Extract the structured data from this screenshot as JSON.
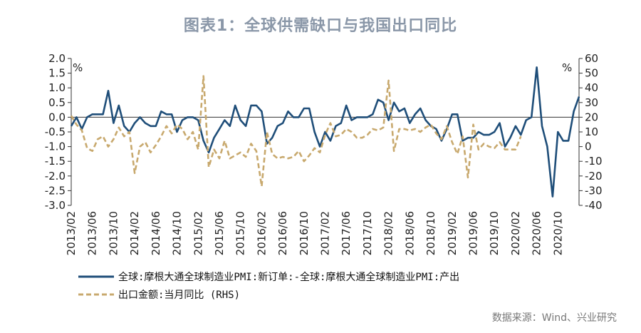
{
  "chart_data": {
    "type": "line",
    "title": "图表1：全球供需缺口与我国出口同比",
    "left_unit": "%",
    "right_unit": "%",
    "ylim_left": [
      -3.0,
      2.0
    ],
    "ylim_right": [
      -40,
      60
    ],
    "yticks_left": [
      "2.0",
      "1.5",
      "1.0",
      "0.5",
      "0.0",
      "-0.5",
      "-1.0",
      "-1.5",
      "-2.0",
      "-2.5",
      "-3.0"
    ],
    "yticks_right": [
      "60",
      "50",
      "40",
      "30",
      "20",
      "10",
      "0",
      "-10",
      "-20",
      "-30",
      "-40"
    ],
    "x_start": "2013/02",
    "x_end": "2020/12",
    "x_tick_labels": [
      "2013/02",
      "2013/06",
      "2013/10",
      "2014/02",
      "2014/06",
      "2014/10",
      "2015/02",
      "2015/06",
      "2015/10",
      "2016/02",
      "2016/06",
      "2016/10",
      "2017/02",
      "2017/06",
      "2017/10",
      "2018/02",
      "2018/06",
      "2018/10",
      "2019/02",
      "2019/06",
      "2019/10",
      "2020/02",
      "2020/06",
      "2020/10"
    ],
    "series": [
      {
        "name": "全球:摩根大通全球制造业PMI:新订单:-全球:摩根大通全球制造业PMI:产出",
        "axis": "left",
        "color": "#1f4e79",
        "style": "solid",
        "values": [
          -0.3,
          0.0,
          -0.4,
          0.0,
          0.1,
          0.1,
          0.1,
          0.9,
          -0.2,
          0.4,
          -0.3,
          -0.5,
          -0.2,
          0.0,
          -0.2,
          -0.3,
          -0.3,
          0.2,
          0.1,
          0.1,
          -0.5,
          -0.1,
          0.0,
          0.0,
          -0.1,
          -0.8,
          -1.2,
          -0.7,
          -0.4,
          -0.1,
          -0.3,
          0.4,
          -0.1,
          -0.3,
          0.4,
          0.4,
          0.2,
          -0.9,
          -0.7,
          -0.3,
          -0.2,
          0.2,
          0.0,
          0.0,
          0.3,
          0.3,
          -0.5,
          -1.0,
          -0.5,
          -0.8,
          -0.3,
          -0.2,
          0.4,
          -0.1,
          0.0,
          0.0,
          0.0,
          0.1,
          0.6,
          0.5,
          -0.1,
          0.5,
          0.2,
          0.3,
          -0.2,
          0.1,
          0.3,
          -0.1,
          -0.3,
          -0.4,
          -0.8,
          -0.4,
          0.1,
          0.1,
          -0.8,
          -0.7,
          -0.7,
          -0.5,
          -0.6,
          -0.6,
          -0.5,
          -0.2,
          -1.0,
          -0.7,
          -0.3,
          -0.6,
          -0.1,
          0.0,
          1.7,
          -0.3,
          -1.0,
          -2.7,
          -0.5,
          -0.8,
          -0.8,
          0.2,
          0.7
        ]
      },
      {
        "name": "出口金额:当月同比 (RHS)",
        "axis": "right",
        "color": "#c8a96e",
        "style": "dashed",
        "values": [
          21,
          15,
          11,
          -1,
          -3,
          5,
          7,
          0,
          5,
          13,
          7,
          10,
          -18,
          0,
          3,
          -4,
          1,
          7,
          14,
          9,
          15,
          12,
          5,
          10,
          -2,
          48,
          -14,
          -2,
          -8,
          4,
          -8,
          -6,
          -4,
          -7,
          2,
          -3,
          -27,
          10,
          -5,
          -8,
          -7,
          -8,
          -7,
          -3,
          -10,
          -6,
          -1,
          -4,
          8,
          16,
          7,
          8,
          12,
          10,
          6,
          6,
          8,
          12,
          11,
          13,
          45,
          -3,
          12,
          12,
          11,
          12,
          10,
          13,
          15,
          9,
          5,
          14,
          3,
          -5,
          7,
          -21,
          15,
          -2,
          2,
          0,
          -1,
          3,
          -2,
          -2,
          -2,
          7
        ]
      }
    ],
    "legend": [
      {
        "label": "全球:摩根大通全球制造业PMI:新订单:-全球:摩根大通全球制造业PMI:产出"
      },
      {
        "label": "出口金额:当月同比 (RHS)"
      }
    ],
    "source": "数据来源：Wind、兴业研究"
  }
}
